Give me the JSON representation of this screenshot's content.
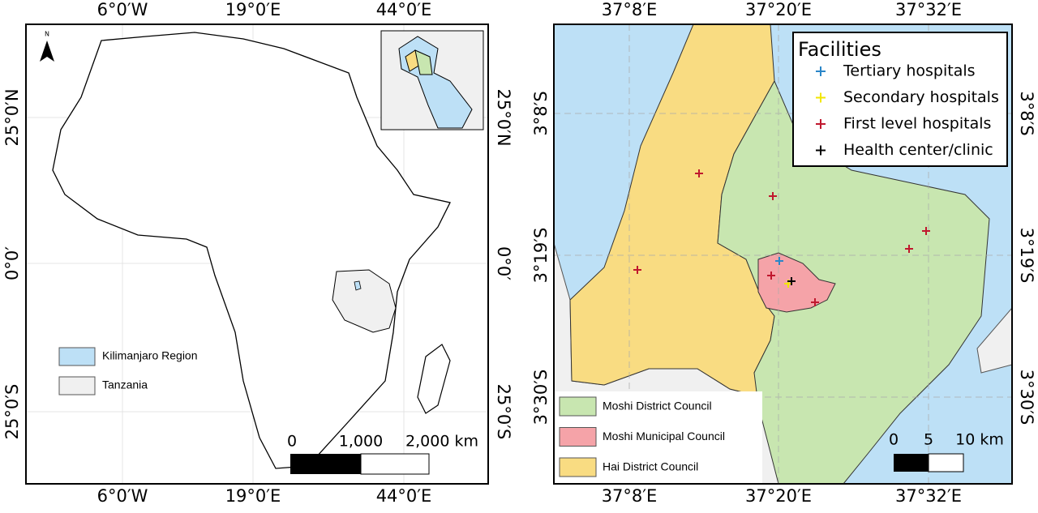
{
  "left_map": {
    "north_arrow": "N",
    "top_labels": [
      "6°0′W",
      "19°0′E",
      "44°0′E"
    ],
    "bottom_labels": [
      "6°0′W",
      "19°0′E",
      "44°0′E"
    ],
    "left_labels": [
      "25°0′N",
      "0°0′",
      "25°0′S"
    ],
    "right_labels": [
      "25°0′N",
      "0°0′",
      "25°0′S"
    ],
    "legend": [
      {
        "label": "Kilimanjaro Region",
        "color": "#bde0f6"
      },
      {
        "label": "Tanzania",
        "color": "#f0f0f0"
      }
    ],
    "scale": [
      "0",
      "1,000",
      "2,000 km"
    ]
  },
  "right_map": {
    "top_labels": [
      "37°8′E",
      "37°20′E",
      "37°32′E"
    ],
    "bottom_labels": [
      "37°8′E",
      "37°20′E",
      "37°32′E"
    ],
    "left_labels": [
      "3°8′S",
      "3°19′S",
      "3°30′S"
    ],
    "right_labels": [
      "3°8′S",
      "3°19′S",
      "3°30′S"
    ],
    "legend_title": "Facilities",
    "facilities": [
      {
        "label": "Tertiary hospitals",
        "color": "#2a86c8"
      },
      {
        "label": "Secondary hospitals",
        "color": "#f2e600"
      },
      {
        "label": "First level hospitals",
        "color": "#c0182e"
      },
      {
        "label": "Health center/clinic",
        "color": "#000000"
      }
    ],
    "councils": [
      {
        "label": "Moshi District Council",
        "color": "#c8e6b0"
      },
      {
        "label": "Moshi Municipal Council",
        "color": "#f5a3a8"
      },
      {
        "label": "Hai District Council",
        "color": "#f9dc82"
      }
    ],
    "scale": [
      "0",
      "5",
      "10 km"
    ]
  }
}
